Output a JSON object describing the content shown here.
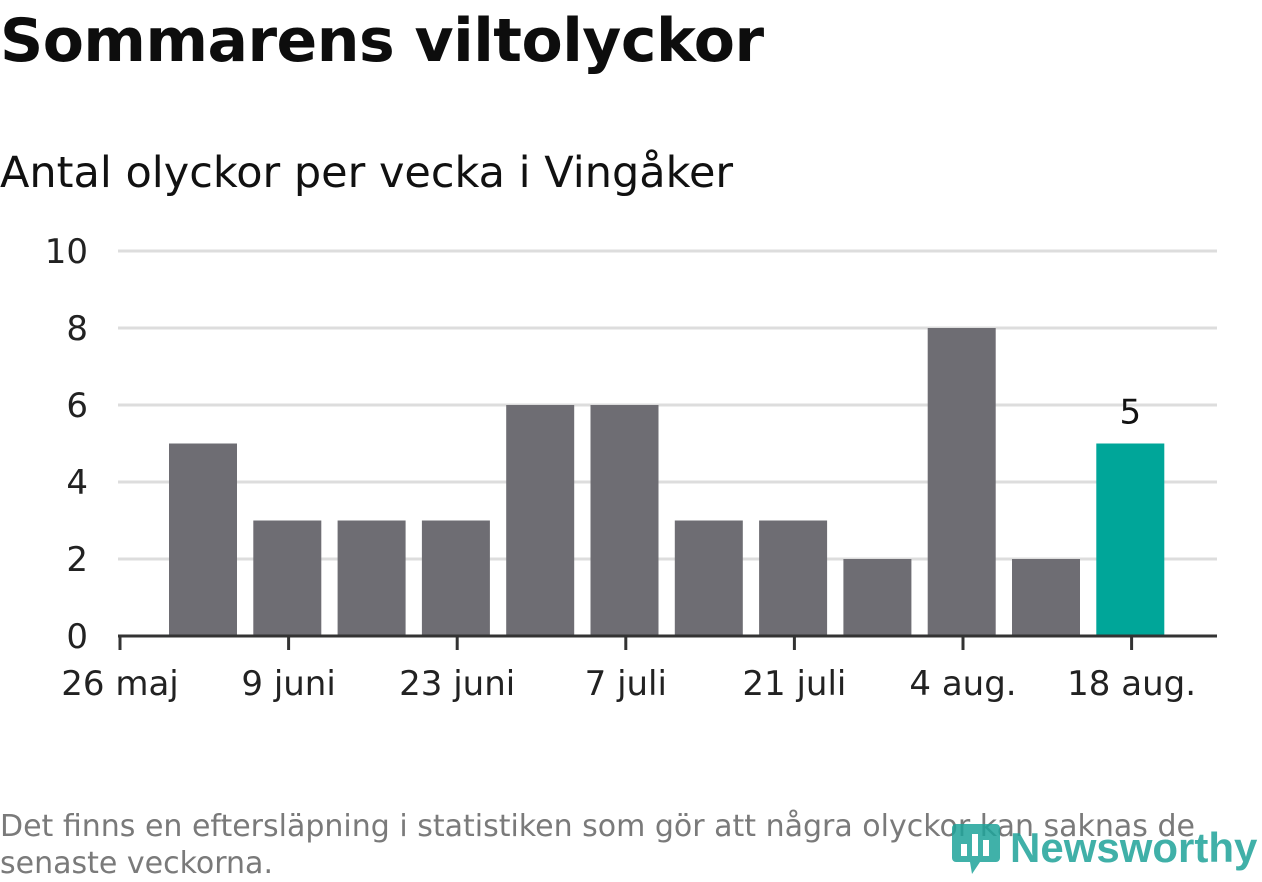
{
  "title": "Sommarens viltolyckor",
  "subtitle": "Antal olyckor per vecka i Vingåker",
  "footnote": "Det finns en eftersläpning i statistiken som gör att några olyckor kan saknas de senaste veckorna.",
  "logo_text": "Newsworthy",
  "colors": {
    "bar": "#6e6d73",
    "highlight": "#00a699",
    "grid": "#dddddd",
    "axis": "#333333"
  },
  "chart_data": {
    "type": "bar",
    "weeks": [
      "2019-05-27",
      "2019-06-03",
      "2019-06-10",
      "2019-06-17",
      "2019-06-24",
      "2019-07-01",
      "2019-07-08",
      "2019-07-15",
      "2019-07-22",
      "2019-07-29",
      "2019-08-05",
      "2019-08-12"
    ],
    "values": [
      5,
      3,
      3,
      3,
      6,
      6,
      3,
      3,
      2,
      8,
      2,
      5
    ],
    "highlight_index": 11,
    "data_labels": [
      "",
      "",
      "",
      "",
      "",
      "",
      "",
      "",
      "",
      "",
      "",
      "5"
    ],
    "ylim": [
      0,
      10
    ],
    "yticks": [
      "0",
      "2",
      "4",
      "6",
      "8",
      "10"
    ],
    "xtick_labels": [
      "26 maj",
      "9 juni",
      "23 juni",
      "7 juli",
      "21 juli",
      "4 aug.",
      "18 aug."
    ],
    "xlabel": "",
    "ylabel": "",
    "grid": true,
    "legend": "none"
  }
}
